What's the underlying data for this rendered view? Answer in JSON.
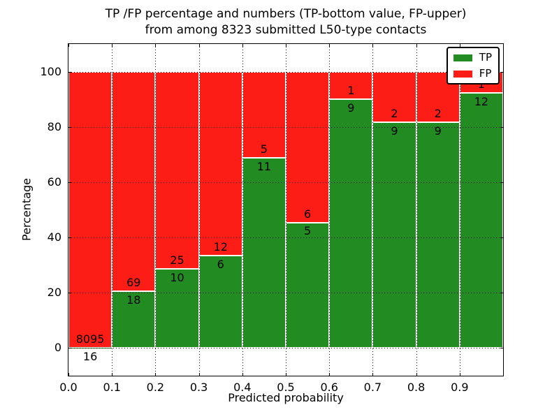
{
  "title": {
    "line1": "TP /FP percentage and numbers (TP-bottom value, FP-upper)",
    "line2": "from among 8323 submitted L50-type contacts"
  },
  "chart_data": {
    "type": "bar",
    "stacked": true,
    "normalized": "each bar totals 100%",
    "title": "TP /FP percentage and numbers (TP-bottom value, FP-upper) from among 8323 submitted L50-type contacts",
    "xlabel": "Predicted probability",
    "ylabel": "Percentage",
    "xlim": [
      0.0,
      1.0
    ],
    "ylim": [
      -10,
      110
    ],
    "x_tick_labels": [
      "0.0",
      "0.1",
      "0.2",
      "0.3",
      "0.4",
      "0.5",
      "0.6",
      "0.7",
      "0.8",
      "0.9"
    ],
    "x_tick_values": [
      0.0,
      0.1,
      0.2,
      0.3,
      0.4,
      0.5,
      0.6,
      0.7,
      0.8,
      0.9
    ],
    "y_tick_labels": [
      "0",
      "20",
      "40",
      "60",
      "80",
      "100"
    ],
    "y_tick_values": [
      0,
      20,
      40,
      60,
      80,
      100
    ],
    "grid": "dotted black, on",
    "bar_width": 0.1,
    "total_contacts": 8323,
    "categories": [
      "0.0-0.1",
      "0.1-0.2",
      "0.2-0.3",
      "0.3-0.4",
      "0.4-0.5",
      "0.5-0.6",
      "0.6-0.7",
      "0.7-0.8",
      "0.8-0.9",
      "0.9-1.0"
    ],
    "series": [
      {
        "name": "TP",
        "color": "#228b22",
        "values": [
          16,
          18,
          10,
          6,
          11,
          5,
          9,
          9,
          9,
          12
        ]
      },
      {
        "name": "FP",
        "color": "#fc1d17",
        "values": [
          8095,
          69,
          25,
          12,
          5,
          6,
          1,
          2,
          2,
          1
        ]
      }
    ],
    "tp_percent_approx": [
      0.2,
      20.7,
      28.6,
      33.3,
      68.8,
      45.5,
      90.0,
      81.8,
      81.8,
      92.3
    ],
    "legend": {
      "position": "upper right",
      "entries": [
        "TP",
        "FP"
      ]
    },
    "colors": {
      "tp": "#228b22",
      "fp": "#fc1d17",
      "edge": "#ffffff",
      "text": "#000000"
    }
  }
}
